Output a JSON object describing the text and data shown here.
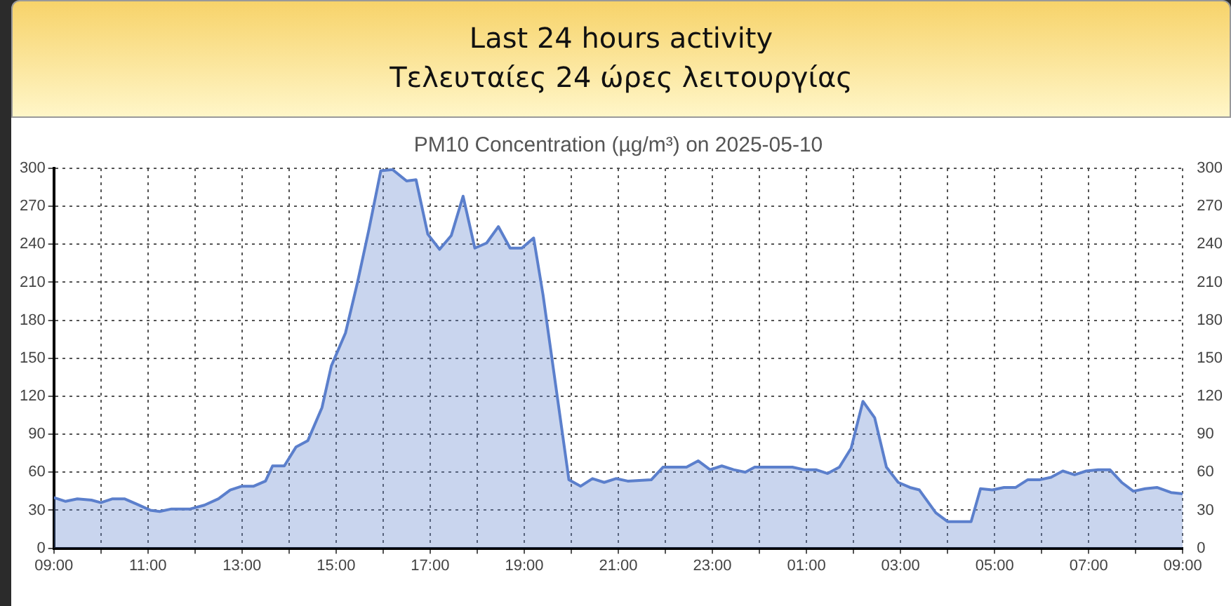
{
  "chart_data": {
    "type": "area",
    "title": "Last 24 hours activity",
    "subtitle": "Τελευταίες 24 ώρες λειτουργίας",
    "annotations": [
      "PM10 Concentration (µg/m³) on 2025-05-10"
    ],
    "x": [
      "2025-05-10T09:00",
      "2025-05-10T09:15",
      "2025-05-10T09:30",
      "2025-05-10T09:48",
      "2025-05-10T10:00",
      "2025-05-10T10:15",
      "2025-05-10T10:30",
      "2025-05-10T10:45",
      "2025-05-10T11:03",
      "2025-05-10T11:15",
      "2025-05-10T11:30",
      "2025-05-10T11:54",
      "2025-05-10T12:12",
      "2025-05-10T12:30",
      "2025-05-10T12:45",
      "2025-05-10T13:00",
      "2025-05-10T13:15",
      "2025-05-10T13:30",
      "2025-05-10T13:39",
      "2025-05-10T13:54",
      "2025-05-10T14:09",
      "2025-05-10T14:24",
      "2025-05-10T14:42",
      "2025-05-10T14:54",
      "2025-05-10T15:12",
      "2025-05-10T15:27",
      "2025-05-10T15:42",
      "2025-05-10T15:57",
      "2025-05-10T16:12",
      "2025-05-10T16:30",
      "2025-05-10T16:42",
      "2025-05-10T16:57",
      "2025-05-10T17:12",
      "2025-05-10T17:27",
      "2025-05-10T17:42",
      "2025-05-10T17:57",
      "2025-05-10T18:12",
      "2025-05-10T18:27",
      "2025-05-10T18:42",
      "2025-05-10T18:57",
      "2025-05-10T19:12",
      "2025-05-10T19:24",
      "2025-05-10T19:57",
      "2025-05-10T20:12",
      "2025-05-10T20:27",
      "2025-05-10T20:42",
      "2025-05-10T20:57",
      "2025-05-10T21:12",
      "2025-05-10T21:42",
      "2025-05-10T21:57",
      "2025-05-10T22:27",
      "2025-05-10T22:42",
      "2025-05-10T22:57",
      "2025-05-10T23:12",
      "2025-05-10T23:27",
      "2025-05-10T23:42",
      "2025-05-10T23:54",
      "2025-05-11T00:27",
      "2025-05-11T00:42",
      "2025-05-11T00:57",
      "2025-05-11T01:12",
      "2025-05-11T01:27",
      "2025-05-11T01:42",
      "2025-05-11T01:57",
      "2025-05-11T02:12",
      "2025-05-11T02:27",
      "2025-05-11T02:42",
      "2025-05-11T02:57",
      "2025-05-11T03:12",
      "2025-05-11T03:24",
      "2025-05-11T03:45",
      "2025-05-11T04:00",
      "2025-05-11T04:15",
      "2025-05-11T04:30",
      "2025-05-11T04:42",
      "2025-05-11T04:57",
      "2025-05-11T05:12",
      "2025-05-11T05:27",
      "2025-05-11T05:42",
      "2025-05-11T05:57",
      "2025-05-11T06:12",
      "2025-05-11T06:27",
      "2025-05-11T06:42",
      "2025-05-11T06:57",
      "2025-05-11T07:12",
      "2025-05-11T07:27",
      "2025-05-11T07:42",
      "2025-05-11T07:57",
      "2025-05-11T08:12",
      "2025-05-11T08:27",
      "2025-05-11T08:45",
      "2025-05-11T09:00"
    ],
    "series": [
      {
        "color": "#5b7fcc",
        "values": [
          40,
          37,
          39,
          38,
          36,
          39,
          39,
          35,
          30,
          29,
          31,
          31,
          34,
          39,
          46,
          49,
          49,
          53,
          65,
          65,
          80,
          85,
          111,
          144,
          170,
          209,
          252,
          298,
          299,
          290,
          291,
          248,
          236,
          247,
          278,
          237,
          241,
          254,
          237,
          237,
          245,
          200,
          54,
          49,
          55,
          52,
          55,
          53,
          54,
          64,
          64,
          69,
          62,
          65,
          62,
          60,
          64,
          64,
          64,
          62,
          62,
          59,
          64,
          79,
          116,
          103,
          64,
          52,
          48,
          46,
          28,
          21,
          21,
          21,
          47,
          46,
          48,
          48,
          54,
          54,
          56,
          61,
          58,
          61,
          62,
          62,
          52,
          45,
          47,
          48,
          44,
          43
        ]
      }
    ],
    "xlim": [
      "2025-05-10T09:00",
      "2025-05-11T09:00"
    ],
    "xticks": [
      {
        "value": "2025-05-10T09:00",
        "label": "09:00"
      },
      {
        "value": "2025-05-10T10:00",
        "label": null
      },
      {
        "value": "2025-05-10T11:00",
        "label": "11:00"
      },
      {
        "value": "2025-05-10T12:00",
        "label": null
      },
      {
        "value": "2025-05-10T13:00",
        "label": "13:00"
      },
      {
        "value": "2025-05-10T14:00",
        "label": null
      },
      {
        "value": "2025-05-10T15:00",
        "label": "15:00"
      },
      {
        "value": "2025-05-10T16:00",
        "label": null
      },
      {
        "value": "2025-05-10T17:00",
        "label": "17:00"
      },
      {
        "value": "2025-05-10T18:00",
        "label": null
      },
      {
        "value": "2025-05-10T19:00",
        "label": "19:00"
      },
      {
        "value": "2025-05-10T20:00",
        "label": null
      },
      {
        "value": "2025-05-10T21:00",
        "label": "21:00"
      },
      {
        "value": "2025-05-10T22:00",
        "label": null
      },
      {
        "value": "2025-05-10T23:00",
        "label": "23:00"
      },
      {
        "value": "2025-05-11T00:00",
        "label": null
      },
      {
        "value": "2025-05-11T01:00",
        "label": "01:00"
      },
      {
        "value": "2025-05-11T02:00",
        "label": null
      },
      {
        "value": "2025-05-11T03:00",
        "label": "03:00"
      },
      {
        "value": "2025-05-11T04:00",
        "label": null
      },
      {
        "value": "2025-05-11T05:00",
        "label": "05:00"
      },
      {
        "value": "2025-05-11T06:00",
        "label": null
      },
      {
        "value": "2025-05-11T07:00",
        "label": "07:00"
      },
      {
        "value": "2025-05-11T08:00",
        "label": null
      },
      {
        "value": "2025-05-11T09:00",
        "label": "09:00"
      }
    ],
    "ylim": [
      0,
      300
    ],
    "yticks": [
      0,
      30,
      60,
      90,
      120,
      150,
      180,
      210,
      240,
      270,
      300
    ],
    "y2lim": [
      0,
      300
    ],
    "y2ticks": [
      0,
      30,
      60,
      90,
      120,
      150,
      180,
      210,
      240,
      270,
      300
    ],
    "grid": true,
    "marker": "none",
    "line_style": "solid",
    "legend": false
  }
}
